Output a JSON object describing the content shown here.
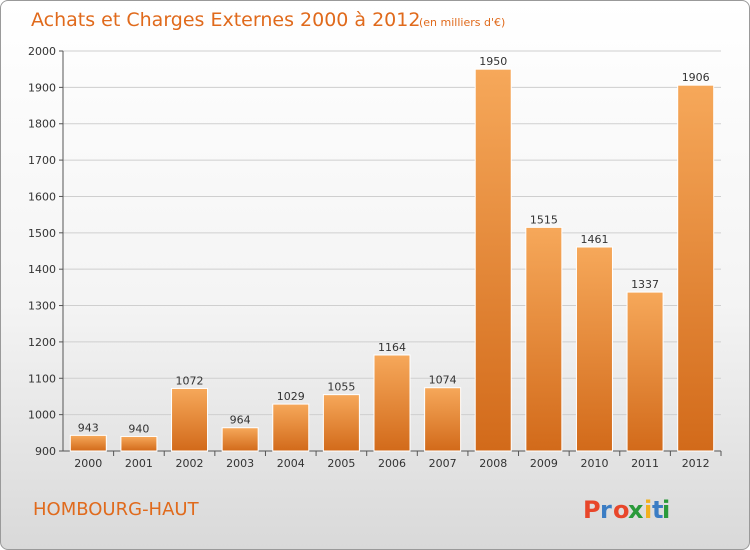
{
  "title": "Achats et Charges Externes 2000 à 2012",
  "unit": "(en milliers d'€)",
  "commune": "HOMBOURG-HAUT",
  "logo": {
    "text": "Proxiti",
    "colors": [
      "#e8462a",
      "#3b7dc4",
      "#e8462a",
      "#2a9a3a",
      "#f2b01e",
      "#3b7dc4",
      "#2a9a3a"
    ]
  },
  "colors": {
    "bar_light": "#f6a85a",
    "bar_dark": "#d26a1a",
    "accent": "#e06a1c"
  },
  "chart_data": {
    "type": "bar",
    "categories": [
      "2000",
      "2001",
      "2002",
      "2003",
      "2004",
      "2005",
      "2006",
      "2007",
      "2008",
      "2009",
      "2010",
      "2011",
      "2012"
    ],
    "values": [
      943,
      940,
      1072,
      964,
      1029,
      1055,
      1164,
      1074,
      1950,
      1515,
      1461,
      1337,
      1906
    ],
    "ylim": [
      900,
      2000
    ],
    "yticks": [
      900,
      1000,
      1100,
      1200,
      1300,
      1400,
      1500,
      1600,
      1700,
      1800,
      1900,
      2000
    ],
    "grid": true,
    "xlabel": "",
    "ylabel": ""
  }
}
